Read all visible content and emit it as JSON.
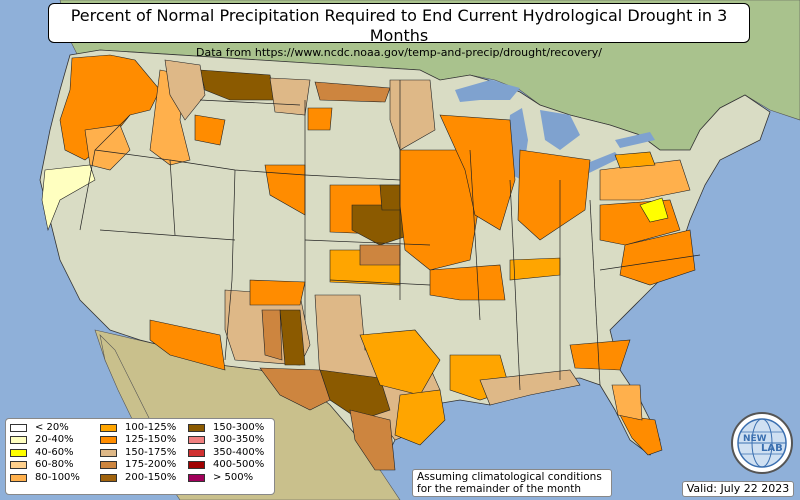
{
  "header": {
    "title": "Percent of Normal Precipitation Required to End Current Hydrological Drought in 3 Months",
    "subtitle": "Data from https://www.ncdc.noaa.gov/temp-and-precip/drought/recovery/"
  },
  "legend": {
    "columns": [
      [
        {
          "label": "< 20%",
          "color": "#ffffff"
        },
        {
          "label": "20-40%",
          "color": "#ffffc0"
        },
        {
          "label": "40-60%",
          "color": "#ffff00"
        },
        {
          "label": "60-80%",
          "color": "#ffd08c"
        },
        {
          "label": "80-100%",
          "color": "#ffb04c"
        }
      ],
      [
        {
          "label": "100-125%",
          "color": "#ffa500"
        },
        {
          "label": "125-150%",
          "color": "#ff8c00"
        },
        {
          "label": "150-175%",
          "color": "#deb887"
        },
        {
          "label": "175-200%",
          "color": "#cd853f"
        },
        {
          "label": "200-150%",
          "color": "#a0620c"
        }
      ],
      [
        {
          "label": "150-300%",
          "color": "#8b5a00"
        },
        {
          "label": "300-350%",
          "color": "#f08080"
        },
        {
          "label": "350-400%",
          "color": "#d03030"
        },
        {
          "label": "400-500%",
          "color": "#a00000"
        },
        {
          "label": "> 500%",
          "color": "#a0005a"
        }
      ]
    ]
  },
  "note": {
    "line1": "Assuming climatological conditions",
    "line2": "for the remainder of the month"
  },
  "valid": "Valid: July 22 2023",
  "logo": {
    "text_top": "NEW",
    "text_bottom": "LAB",
    "icon": "globe-logo-icon"
  },
  "colors": {
    "ocean": "#8fb0d9",
    "land": "#d9dcc4",
    "canada": "#a9c28d",
    "mexico": "#c9c08c",
    "lakes": "#7fa2cf"
  }
}
